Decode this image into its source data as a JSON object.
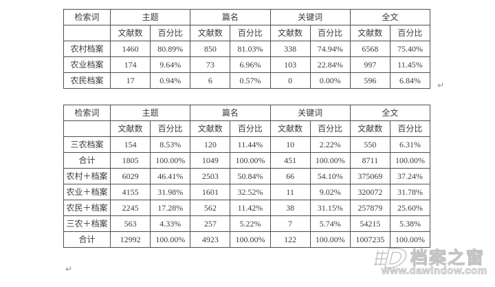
{
  "document": {
    "paragraph_mark": "↵",
    "colors": {
      "table_border": "#4e4e4e",
      "table_text": "#3b3b3b",
      "watermark_gray": "#c4c4c4",
      "paragraph_mark_gray": "#868c96"
    },
    "tables": [
      {
        "header": {
          "corner": "检索词",
          "groups": [
            "主题",
            "篇名",
            "关键词",
            "全文"
          ],
          "sub_count_label": "文献数",
          "sub_percent_label": "百分比"
        },
        "rows": [
          {
            "label": "农村档案",
            "values": [
              "1460",
              "80.89%",
              "850",
              "81.03%",
              "338",
              "74.94%",
              "6568",
              "75.40%"
            ]
          },
          {
            "label": "农业档案",
            "values": [
              "174",
              "9.64%",
              "73",
              "6.96%",
              "103",
              "22.84%",
              "997",
              "11.45%"
            ]
          },
          {
            "label": "农民档案",
            "values": [
              "17",
              "0.94%",
              "6",
              "0.57%",
              "0",
              "0.00%",
              "596",
              "6.84%"
            ]
          }
        ]
      },
      {
        "header": {
          "corner": "检索词",
          "groups": [
            "主题",
            "篇名",
            "关键词",
            "全文"
          ],
          "sub_count_label": "文献数",
          "sub_percent_label": "百分比"
        },
        "rows": [
          {
            "label": "三农档案",
            "values": [
              "154",
              "8.53%",
              "120",
              "11.44%",
              "10",
              "2.22%",
              "550",
              "6.31%"
            ]
          },
          {
            "label": "合计",
            "values": [
              "1805",
              "100.00%",
              "1049",
              "100.00%",
              "451",
              "100.00%",
              "8711",
              "100.00%"
            ]
          },
          {
            "label": "农村＋档案",
            "values": [
              "6029",
              "46.41%",
              "2503",
              "50.84%",
              "66",
              "54.10%",
              "375069",
              "37.24%"
            ]
          },
          {
            "label": "农业＋档案",
            "values": [
              "4155",
              "31.98%",
              "1601",
              "32.52%",
              "11",
              "9.02%",
              "320072",
              "31.78%"
            ]
          },
          {
            "label": "农民＋档案",
            "values": [
              "2245",
              "17.28%",
              "562",
              "11.42%",
              "38",
              "31.15%",
              "257879",
              "25.60%"
            ]
          },
          {
            "label": "三农＋档案",
            "values": [
              "563",
              "4.33%",
              "257",
              "5.22%",
              "7",
              "5.74%",
              "54215",
              "5.38%"
            ]
          },
          {
            "label": "合计",
            "values": [
              "12992",
              "100.00%",
              "4923",
              "100.00%",
              "122",
              "100.00%",
              "1007235",
              "100.00%"
            ]
          }
        ]
      }
    ],
    "watermark": {
      "logo": "D",
      "title": "档案之窗",
      "url": "www.dawindow.com"
    }
  }
}
